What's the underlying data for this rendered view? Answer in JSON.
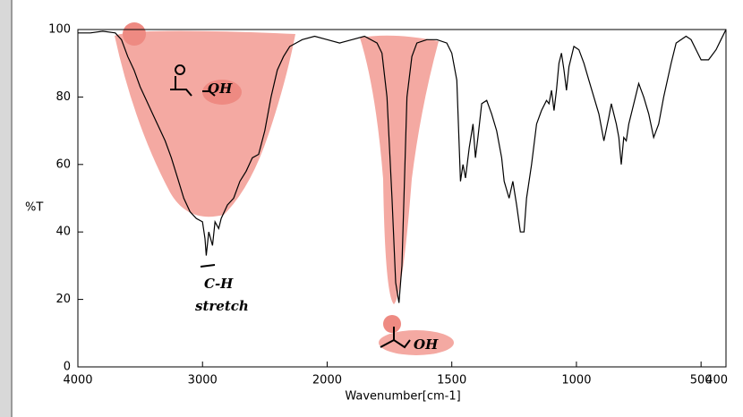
{
  "chart_data": {
    "type": "line",
    "x_label": "Wavenumber[cm-1]",
    "y_label": "%T",
    "xlim": [
      4000,
      400
    ],
    "xbreak": 2000,
    "xticks": [
      4000,
      3000,
      2000,
      1500,
      1000,
      500,
      400
    ],
    "ylim": [
      0,
      100
    ],
    "yticks": [
      0,
      20,
      40,
      60,
      80,
      100
    ],
    "annotations": [
      "OH",
      "C-H",
      "stretch",
      "OH"
    ],
    "series": [
      {
        "color": "#000000",
        "x": [
          4000,
          3900,
          3800,
          3700,
          3650,
          3600,
          3550,
          3500,
          3450,
          3400,
          3350,
          3300,
          3250,
          3200,
          3150,
          3100,
          3050,
          3000,
          2980,
          2970,
          2950,
          2920,
          2900,
          2870,
          2850,
          2800,
          2750,
          2700,
          2650,
          2600,
          2550,
          2500,
          2450,
          2400,
          2350,
          2300,
          2250,
          2200,
          2100,
          2000,
          1950,
          1900,
          1850,
          1800,
          1780,
          1760,
          1740,
          1725,
          1712,
          1700,
          1690,
          1680,
          1660,
          1640,
          1600,
          1560,
          1520,
          1500,
          1480,
          1465,
          1455,
          1445,
          1430,
          1415,
          1405,
          1395,
          1380,
          1360,
          1340,
          1320,
          1300,
          1290,
          1270,
          1255,
          1240,
          1225,
          1210,
          1200,
          1180,
          1160,
          1140,
          1120,
          1110,
          1100,
          1090,
          1080,
          1070,
          1060,
          1050,
          1040,
          1030,
          1010,
          990,
          970,
          950,
          930,
          910,
          890,
          870,
          860,
          850,
          840,
          830,
          820,
          810,
          800,
          790,
          770,
          750,
          730,
          710,
          690,
          670,
          650,
          620,
          600,
          580,
          560,
          540,
          520,
          500,
          470,
          440,
          420,
          400
        ],
        "values": [
          99,
          99,
          99.5,
          99,
          97,
          92,
          88,
          83,
          79,
          75,
          71,
          67,
          62,
          56,
          50,
          46,
          44,
          43,
          38,
          33,
          40,
          36,
          43,
          41,
          44,
          48,
          50,
          55,
          58,
          62,
          63,
          70,
          80,
          88,
          92,
          95,
          96,
          97,
          98,
          97,
          96,
          97,
          98,
          96,
          93,
          80,
          50,
          25,
          19,
          30,
          55,
          80,
          92,
          96,
          97,
          97,
          96,
          93,
          85,
          55,
          60,
          56,
          65,
          72,
          62,
          68,
          78,
          79,
          75,
          70,
          62,
          55,
          50,
          55,
          48,
          40,
          40,
          50,
          60,
          72,
          76,
          79,
          78,
          82,
          76,
          82,
          90,
          93,
          88,
          82,
          89,
          95,
          94,
          90,
          85,
          80,
          75,
          67,
          74,
          78,
          75,
          72,
          68,
          60,
          68,
          67,
          72,
          78,
          84,
          80,
          75,
          68,
          72,
          80,
          90,
          96,
          97,
          98,
          97,
          94,
          91,
          91,
          94,
          97,
          100
        ]
      }
    ]
  }
}
